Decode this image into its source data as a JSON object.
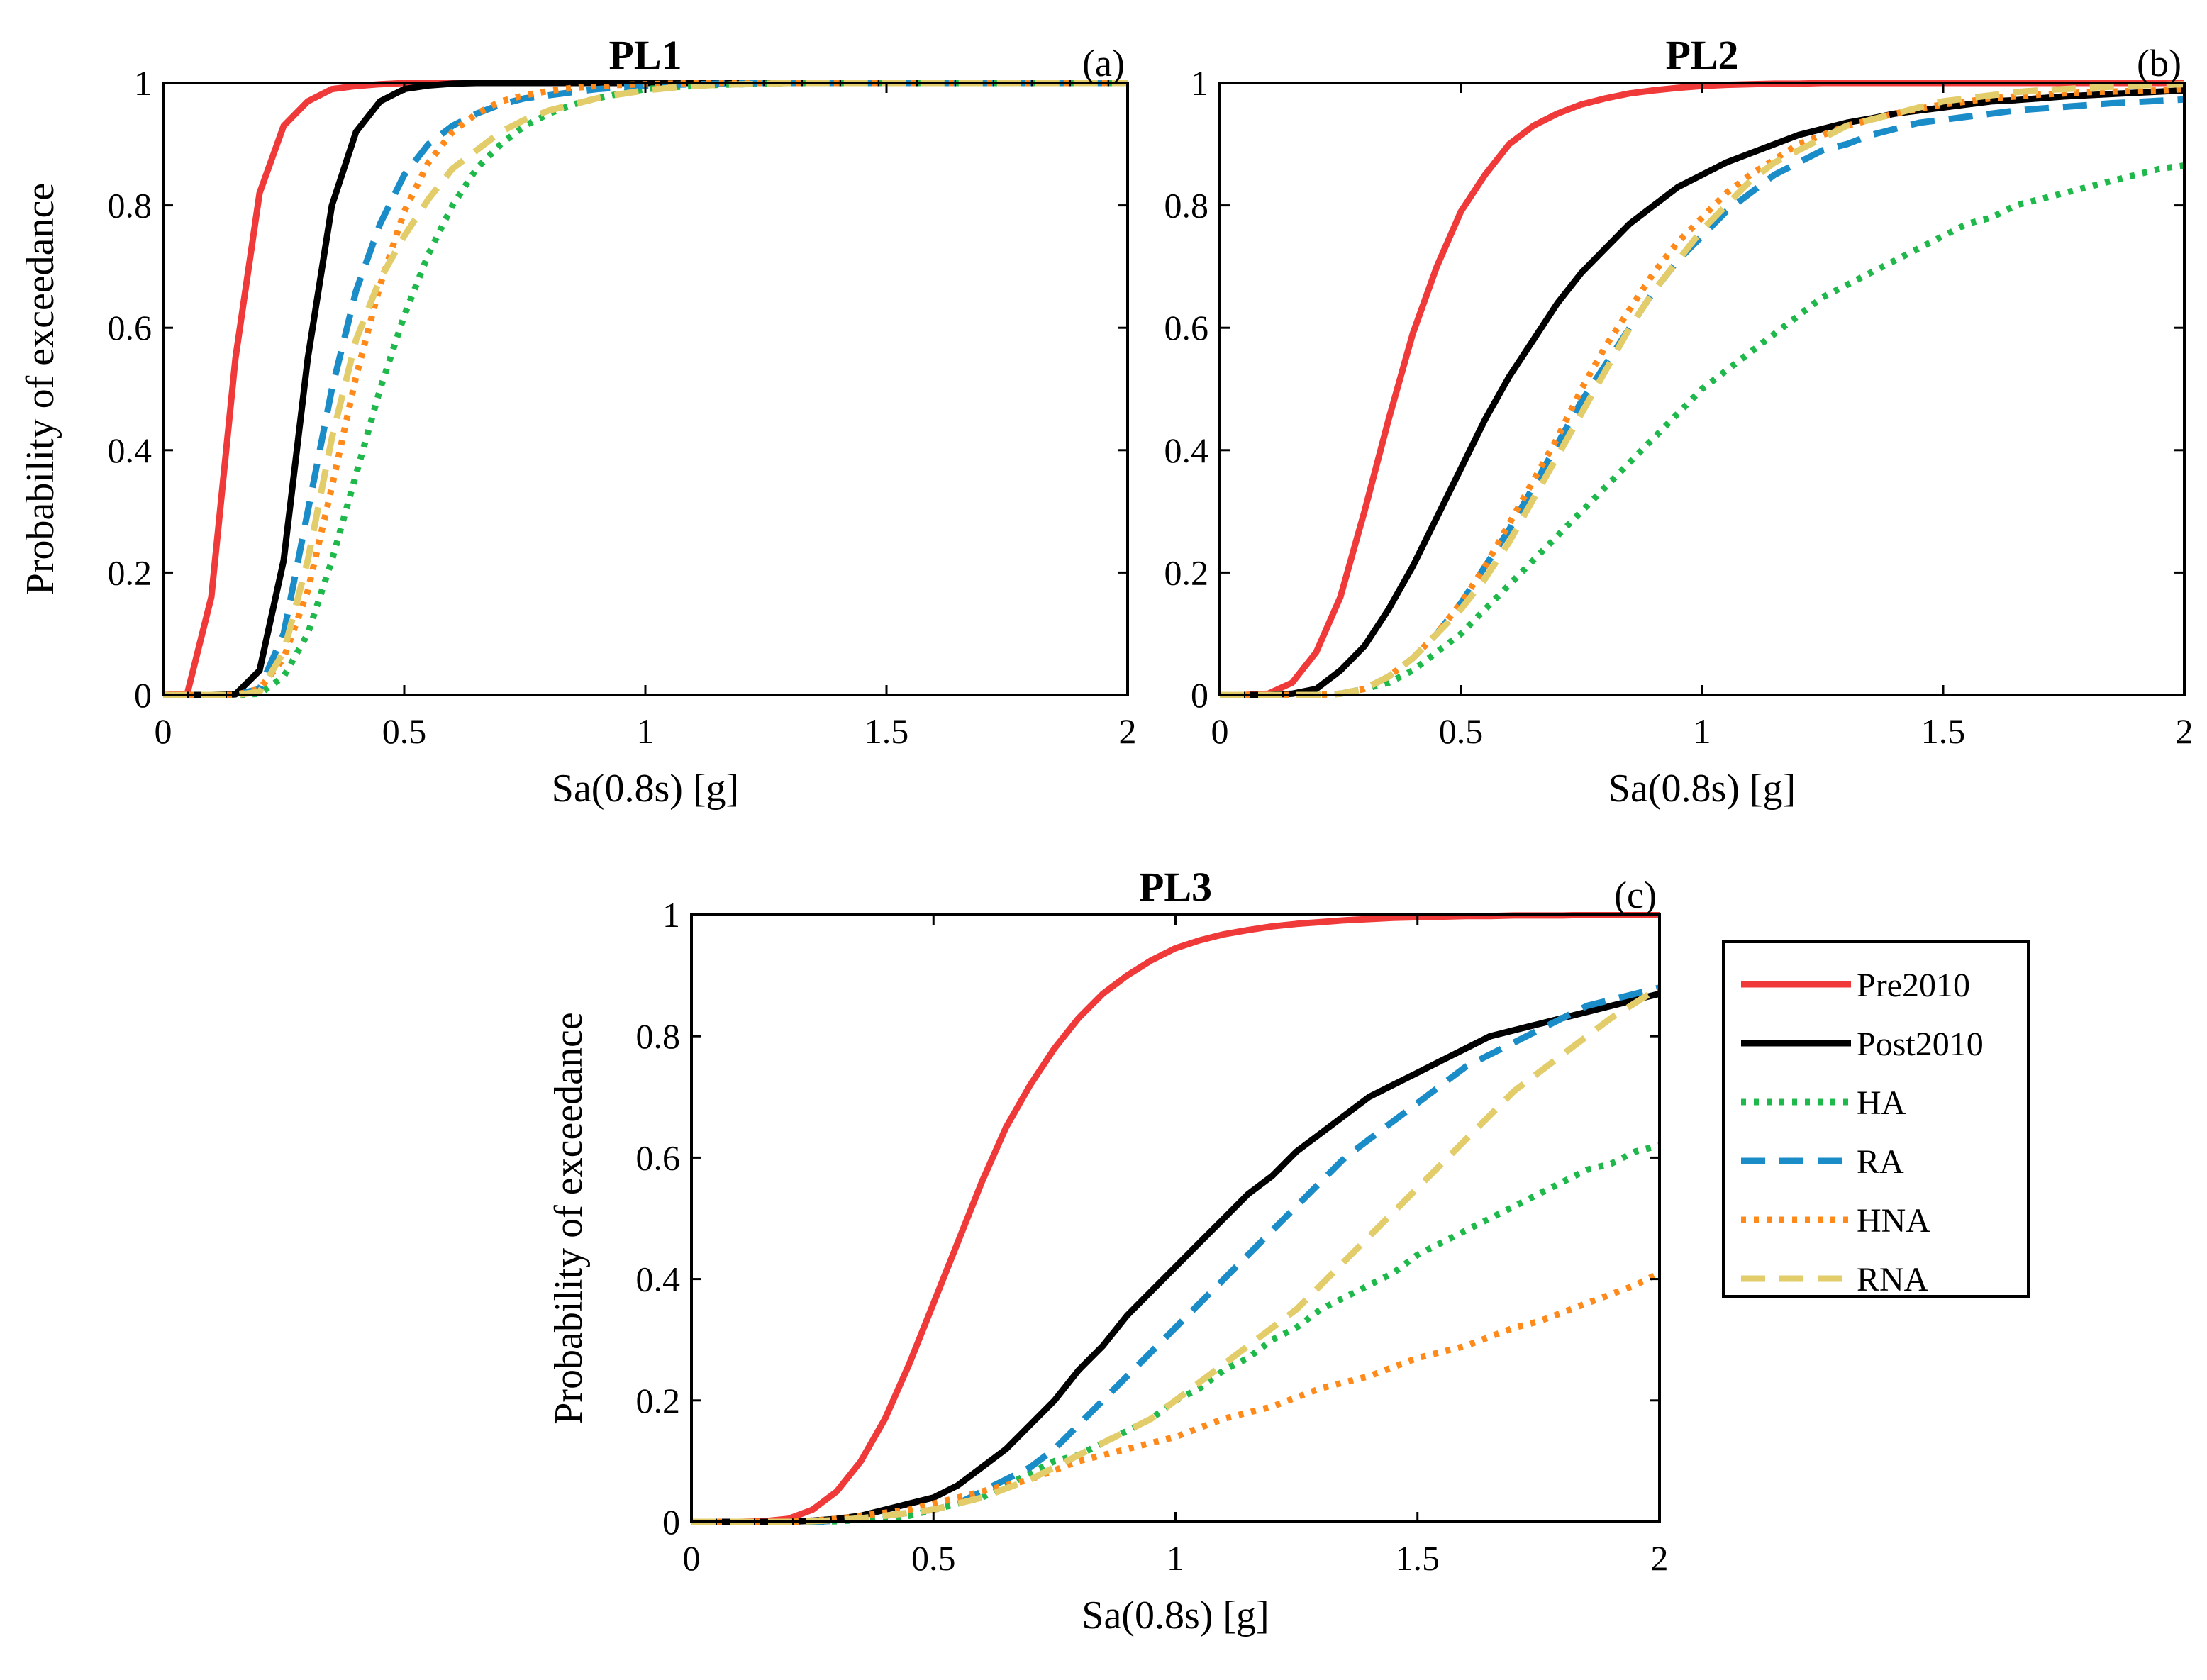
{
  "figure": {
    "legend": {
      "placement": "right of panel (c)",
      "entries": [
        {
          "name": "Pre2010",
          "color": "#f03a3a",
          "dash": "solid"
        },
        {
          "name": "Post2010",
          "color": "#000000",
          "dash": "solid"
        },
        {
          "name": "HA",
          "color": "#1fb84a",
          "dash": "dotted"
        },
        {
          "name": "RA",
          "color": "#1a8cc8",
          "dash": "dashed"
        },
        {
          "name": "HNA",
          "color": "#ff8a1a",
          "dash": "dotted"
        },
        {
          "name": "RNA",
          "color": "#e3cd6b",
          "dash": "dashed"
        }
      ]
    }
  },
  "chart_data": [
    {
      "type": "line",
      "title": "PL1",
      "panel_label": "(a)",
      "xlabel": "Sa(0.8s) [g]",
      "ylabel": "Probability of exceedance",
      "xlim": [
        0,
        2
      ],
      "ylim": [
        0,
        1
      ],
      "xticks": [
        "0",
        "0.5",
        "1",
        "1.5",
        "2"
      ],
      "yticks": [
        "0",
        "0.2",
        "0.4",
        "0.6",
        "0.8",
        "1"
      ],
      "grid": false,
      "x": [
        0,
        0.05,
        0.1,
        0.15,
        0.2,
        0.25,
        0.3,
        0.35,
        0.4,
        0.45,
        0.5,
        0.55,
        0.6,
        0.65,
        0.7,
        0.75,
        0.8,
        0.85,
        0.9,
        0.95,
        1.0,
        1.05,
        1.1,
        1.15,
        1.2,
        1.25,
        1.3,
        1.35,
        1.4,
        1.45,
        1.5,
        1.55,
        1.6,
        1.65,
        1.7,
        1.75,
        1.8,
        1.85,
        1.9,
        1.95,
        2.0
      ],
      "series": [
        {
          "name": "Pre2010",
          "values": [
            0,
            0.002,
            0.16,
            0.55,
            0.82,
            0.93,
            0.97,
            0.99,
            0.995,
            0.998,
            1,
            1,
            1,
            1,
            1,
            1,
            1,
            1,
            1,
            1,
            1,
            1,
            1,
            1,
            1,
            1,
            1,
            1,
            1,
            1,
            1,
            1,
            1,
            1,
            1,
            1,
            1,
            1,
            1,
            1,
            1
          ]
        },
        {
          "name": "Post2010",
          "values": [
            0,
            0,
            0,
            0.001,
            0.04,
            0.22,
            0.55,
            0.8,
            0.92,
            0.97,
            0.99,
            0.996,
            0.999,
            1,
            1,
            1,
            1,
            1,
            1,
            1,
            1,
            1,
            1,
            1,
            1,
            1,
            1,
            1,
            1,
            1,
            1,
            1,
            1,
            1,
            1,
            1,
            1,
            1,
            1,
            1,
            1
          ]
        },
        {
          "name": "HA",
          "values": [
            0,
            0,
            0,
            0,
            0.002,
            0.03,
            0.1,
            0.22,
            0.36,
            0.5,
            0.62,
            0.72,
            0.8,
            0.86,
            0.9,
            0.93,
            0.95,
            0.965,
            0.975,
            0.983,
            0.99,
            0.993,
            0.995,
            0.997,
            0.998,
            0.999,
            1,
            1,
            1,
            1,
            1,
            1,
            1,
            1,
            1,
            1,
            1,
            1,
            1,
            1,
            1
          ]
        },
        {
          "name": "RA",
          "values": [
            0,
            0,
            0,
            0,
            0.01,
            0.1,
            0.3,
            0.5,
            0.66,
            0.77,
            0.85,
            0.9,
            0.93,
            0.95,
            0.965,
            0.975,
            0.98,
            0.985,
            0.99,
            0.993,
            0.995,
            0.997,
            0.998,
            0.999,
            1,
            1,
            1,
            1,
            1,
            1,
            1,
            1,
            1,
            1,
            1,
            1,
            1,
            1,
            1,
            1,
            1
          ]
        },
        {
          "name": "HNA",
          "values": [
            0,
            0,
            0,
            0,
            0.01,
            0.06,
            0.17,
            0.34,
            0.52,
            0.67,
            0.79,
            0.87,
            0.92,
            0.95,
            0.97,
            0.98,
            0.987,
            0.992,
            0.995,
            0.997,
            0.998,
            0.999,
            1,
            1,
            1,
            1,
            1,
            1,
            1,
            1,
            1,
            1,
            1,
            1,
            1,
            1,
            1,
            1,
            1,
            1,
            1
          ]
        },
        {
          "name": "RNA",
          "values": [
            0,
            0,
            0,
            0,
            0.005,
            0.07,
            0.22,
            0.42,
            0.58,
            0.68,
            0.75,
            0.81,
            0.86,
            0.89,
            0.92,
            0.94,
            0.955,
            0.965,
            0.975,
            0.982,
            0.988,
            0.992,
            0.995,
            0.997,
            0.998,
            0.999,
            1,
            1,
            1,
            1,
            1,
            1,
            1,
            1,
            1,
            1,
            1,
            1,
            1,
            1,
            1
          ]
        }
      ]
    },
    {
      "type": "line",
      "title": "PL2",
      "panel_label": "(b)",
      "xlabel": "Sa(0.8s) [g]",
      "ylabel": "",
      "xlim": [
        0,
        2
      ],
      "ylim": [
        0,
        1
      ],
      "xticks": [
        "0",
        "0.5",
        "1",
        "1.5",
        "2"
      ],
      "yticks": [
        "0",
        "0.2",
        "0.4",
        "0.6",
        "0.8",
        "1"
      ],
      "grid": false,
      "x": [
        0,
        0.05,
        0.1,
        0.15,
        0.2,
        0.25,
        0.3,
        0.35,
        0.4,
        0.45,
        0.5,
        0.55,
        0.6,
        0.65,
        0.7,
        0.75,
        0.8,
        0.85,
        0.9,
        0.95,
        1.0,
        1.05,
        1.1,
        1.15,
        1.2,
        1.25,
        1.3,
        1.35,
        1.4,
        1.45,
        1.5,
        1.55,
        1.6,
        1.65,
        1.7,
        1.75,
        1.8,
        1.85,
        1.9,
        1.95,
        2.0
      ],
      "series": [
        {
          "name": "Pre2010",
          "values": [
            0,
            0,
            0.002,
            0.02,
            0.07,
            0.16,
            0.3,
            0.45,
            0.59,
            0.7,
            0.79,
            0.85,
            0.9,
            0.93,
            0.95,
            0.965,
            0.975,
            0.983,
            0.988,
            0.992,
            0.995,
            0.997,
            0.998,
            0.999,
            0.999,
            1,
            1,
            1,
            1,
            1,
            1,
            1,
            1,
            1,
            1,
            1,
            1,
            1,
            1,
            1,
            1
          ]
        },
        {
          "name": "Post2010",
          "values": [
            0,
            0,
            0,
            0.002,
            0.01,
            0.04,
            0.08,
            0.14,
            0.21,
            0.29,
            0.37,
            0.45,
            0.52,
            0.58,
            0.64,
            0.69,
            0.73,
            0.77,
            0.8,
            0.83,
            0.85,
            0.87,
            0.885,
            0.9,
            0.915,
            0.925,
            0.935,
            0.942,
            0.95,
            0.955,
            0.96,
            0.965,
            0.97,
            0.972,
            0.975,
            0.978,
            0.98,
            0.982,
            0.984,
            0.986,
            0.988
          ]
        },
        {
          "name": "HA",
          "values": [
            0,
            0,
            0,
            0,
            0,
            0.002,
            0.01,
            0.02,
            0.04,
            0.07,
            0.1,
            0.14,
            0.18,
            0.22,
            0.26,
            0.3,
            0.34,
            0.38,
            0.42,
            0.46,
            0.5,
            0.53,
            0.56,
            0.59,
            0.62,
            0.65,
            0.67,
            0.69,
            0.71,
            0.73,
            0.75,
            0.77,
            0.78,
            0.8,
            0.81,
            0.82,
            0.83,
            0.84,
            0.85,
            0.86,
            0.865
          ]
        },
        {
          "name": "RA",
          "values": [
            0,
            0,
            0,
            0,
            0,
            0.002,
            0.01,
            0.03,
            0.06,
            0.1,
            0.15,
            0.21,
            0.27,
            0.34,
            0.41,
            0.48,
            0.54,
            0.6,
            0.66,
            0.71,
            0.75,
            0.79,
            0.82,
            0.85,
            0.87,
            0.89,
            0.9,
            0.915,
            0.925,
            0.935,
            0.94,
            0.945,
            0.95,
            0.955,
            0.958,
            0.961,
            0.964,
            0.967,
            0.969,
            0.971,
            0.973
          ]
        },
        {
          "name": "HNA",
          "values": [
            0,
            0,
            0,
            0,
            0,
            0.002,
            0.01,
            0.03,
            0.06,
            0.1,
            0.15,
            0.21,
            0.28,
            0.35,
            0.42,
            0.5,
            0.57,
            0.63,
            0.69,
            0.74,
            0.78,
            0.82,
            0.85,
            0.875,
            0.9,
            0.915,
            0.93,
            0.94,
            0.95,
            0.958,
            0.965,
            0.97,
            0.975,
            0.978,
            0.981,
            0.983,
            0.985,
            0.986,
            0.987,
            0.988,
            0.99
          ]
        },
        {
          "name": "RNA",
          "values": [
            0,
            0,
            0,
            0,
            0,
            0.002,
            0.01,
            0.03,
            0.06,
            0.1,
            0.14,
            0.19,
            0.25,
            0.32,
            0.39,
            0.46,
            0.53,
            0.6,
            0.66,
            0.71,
            0.76,
            0.8,
            0.84,
            0.87,
            0.89,
            0.91,
            0.93,
            0.94,
            0.95,
            0.96,
            0.97,
            0.975,
            0.98,
            0.985,
            0.988,
            0.99,
            0.992,
            0.994,
            0.996,
            0.997,
            0.998
          ]
        }
      ]
    },
    {
      "type": "line",
      "title": "PL3",
      "panel_label": "(c)",
      "xlabel": "Sa(0.8s) [g]",
      "ylabel": "Probability of exceedance",
      "xlim": [
        0,
        2
      ],
      "ylim": [
        0,
        1
      ],
      "xticks": [
        "0",
        "0.5",
        "1",
        "1.5",
        "2"
      ],
      "yticks": [
        "0",
        "0.2",
        "0.4",
        "0.6",
        "0.8",
        "1"
      ],
      "grid": false,
      "x": [
        0,
        0.05,
        0.1,
        0.15,
        0.2,
        0.25,
        0.3,
        0.35,
        0.4,
        0.45,
        0.5,
        0.55,
        0.6,
        0.65,
        0.7,
        0.75,
        0.8,
        0.85,
        0.9,
        0.95,
        1.0,
        1.05,
        1.1,
        1.15,
        1.2,
        1.25,
        1.3,
        1.35,
        1.4,
        1.45,
        1.5,
        1.55,
        1.6,
        1.65,
        1.7,
        1.75,
        1.8,
        1.85,
        1.9,
        1.95,
        2.0
      ],
      "series": [
        {
          "name": "Pre2010",
          "values": [
            0,
            0,
            0,
            0.001,
            0.005,
            0.02,
            0.05,
            0.1,
            0.17,
            0.26,
            0.36,
            0.46,
            0.56,
            0.65,
            0.72,
            0.78,
            0.83,
            0.87,
            0.9,
            0.925,
            0.945,
            0.958,
            0.968,
            0.975,
            0.981,
            0.985,
            0.988,
            0.991,
            0.993,
            0.995,
            0.996,
            0.997,
            0.998,
            0.998,
            0.999,
            0.999,
            0.999,
            1,
            1,
            1,
            1
          ]
        },
        {
          "name": "Post2010",
          "values": [
            0,
            0,
            0,
            0,
            0,
            0.002,
            0.005,
            0.01,
            0.02,
            0.03,
            0.04,
            0.06,
            0.09,
            0.12,
            0.16,
            0.2,
            0.25,
            0.29,
            0.34,
            0.38,
            0.42,
            0.46,
            0.5,
            0.54,
            0.57,
            0.61,
            0.64,
            0.67,
            0.7,
            0.72,
            0.74,
            0.76,
            0.78,
            0.8,
            0.81,
            0.82,
            0.83,
            0.84,
            0.85,
            0.86,
            0.87
          ]
        },
        {
          "name": "HA",
          "values": [
            0,
            0,
            0,
            0,
            0,
            0,
            0.001,
            0.003,
            0.006,
            0.01,
            0.02,
            0.03,
            0.04,
            0.06,
            0.08,
            0.1,
            0.11,
            0.13,
            0.15,
            0.17,
            0.2,
            0.22,
            0.25,
            0.27,
            0.3,
            0.32,
            0.35,
            0.37,
            0.39,
            0.41,
            0.44,
            0.46,
            0.48,
            0.5,
            0.52,
            0.54,
            0.56,
            0.58,
            0.59,
            0.61,
            0.62
          ]
        },
        {
          "name": "RA",
          "values": [
            0,
            0,
            0,
            0,
            0,
            0,
            0.002,
            0.005,
            0.01,
            0.015,
            0.02,
            0.03,
            0.05,
            0.07,
            0.09,
            0.12,
            0.16,
            0.2,
            0.24,
            0.28,
            0.32,
            0.36,
            0.4,
            0.44,
            0.48,
            0.52,
            0.56,
            0.6,
            0.63,
            0.66,
            0.69,
            0.72,
            0.75,
            0.77,
            0.79,
            0.81,
            0.83,
            0.85,
            0.86,
            0.87,
            0.88
          ]
        },
        {
          "name": "HNA",
          "values": [
            0,
            0,
            0,
            0,
            0,
            0.002,
            0.005,
            0.01,
            0.015,
            0.02,
            0.03,
            0.04,
            0.05,
            0.06,
            0.07,
            0.085,
            0.1,
            0.11,
            0.12,
            0.13,
            0.14,
            0.155,
            0.17,
            0.18,
            0.19,
            0.205,
            0.22,
            0.23,
            0.24,
            0.255,
            0.27,
            0.28,
            0.29,
            0.305,
            0.32,
            0.33,
            0.345,
            0.36,
            0.375,
            0.39,
            0.41
          ]
        },
        {
          "name": "RNA",
          "values": [
            0,
            0,
            0,
            0,
            0,
            0.001,
            0.003,
            0.006,
            0.01,
            0.015,
            0.02,
            0.03,
            0.04,
            0.055,
            0.07,
            0.09,
            0.11,
            0.13,
            0.15,
            0.17,
            0.2,
            0.23,
            0.26,
            0.29,
            0.32,
            0.35,
            0.39,
            0.43,
            0.47,
            0.51,
            0.55,
            0.59,
            0.63,
            0.67,
            0.71,
            0.74,
            0.77,
            0.8,
            0.83,
            0.855,
            0.88
          ]
        }
      ]
    }
  ]
}
